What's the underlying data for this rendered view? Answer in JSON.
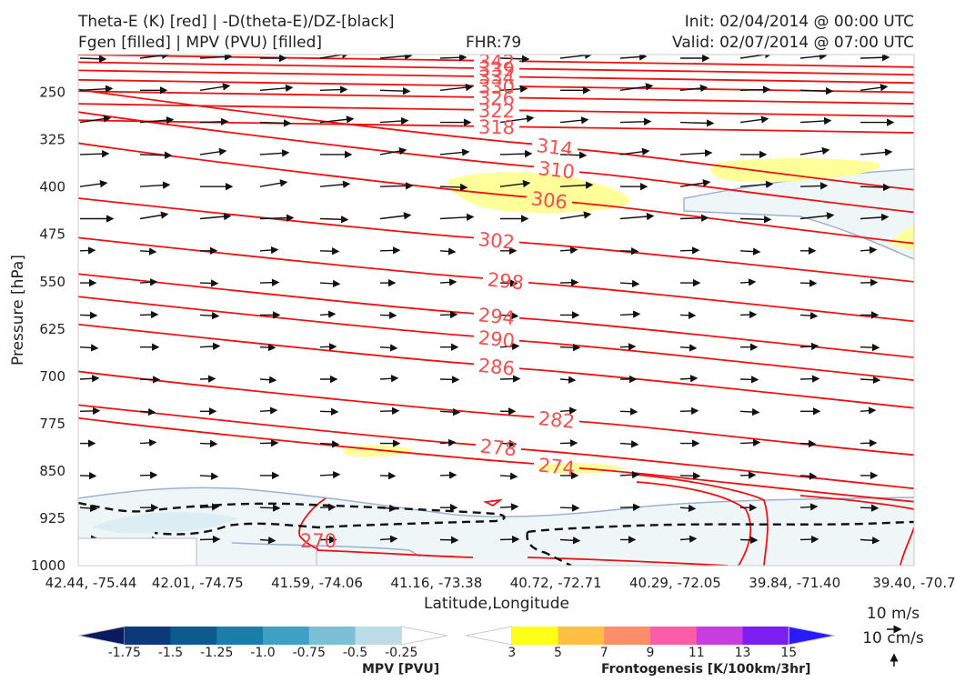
{
  "header": {
    "title_left_1": "Theta-E (K) [red] | -D(theta-E)/DZ-[black]",
    "title_left_2": "Fgen [filled] | MPV (PVU) [filled]",
    "fhr": "FHR:79",
    "init": "Init: 02/04/2014 @ 00:00 UTC",
    "valid": "Valid: 02/07/2014 @ 07:00 UTC"
  },
  "chart_data": {
    "type": "cross-section",
    "xlabel": "Latitude,Longitude",
    "ylabel": "Pressure [hPa]",
    "y_ticks": [
      250,
      325,
      400,
      475,
      550,
      625,
      700,
      775,
      850,
      925,
      1000
    ],
    "ylim": [
      190,
      1000
    ],
    "x_ticks": [
      "42.44, -75.44",
      "42.01, -74.75",
      "41.59, -74.06",
      "41.16, -73.38",
      "40.72, -72.71",
      "40.29, -72.05",
      "39.84, -71.40",
      "39.40, -70.7"
    ],
    "theta_e_contours": [
      {
        "label": "342",
        "at": 200
      },
      {
        "label": "339",
        "at": 212
      },
      {
        "label": "334",
        "at": 225
      },
      {
        "label": "330",
        "at": 240
      },
      {
        "label": "326",
        "at": 258
      },
      {
        "label": "322",
        "at": 278
      },
      {
        "label": "318",
        "at": 304
      },
      {
        "label": "314",
        "at": 336
      },
      {
        "label": "310",
        "at": 372
      },
      {
        "label": "306",
        "at": 420
      },
      {
        "label": "302",
        "at": 484
      },
      {
        "label": "298",
        "at": 548
      },
      {
        "label": "294",
        "at": 604
      },
      {
        "label": "290",
        "at": 640
      },
      {
        "label": "286",
        "at": 684
      },
      {
        "label": "282",
        "at": 768
      },
      {
        "label": "278",
        "at": 812
      },
      {
        "label": "274",
        "at": 842
      },
      {
        "label": "270",
        "at": 960
      }
    ],
    "mpv_colorbar": {
      "label": "MPV [PVU]",
      "ticks": [
        "-1.75",
        "-1.5",
        "-1.25",
        "-1.0",
        "-0.75",
        "-0.5",
        "-0.25"
      ],
      "colors": [
        "#0b1a5e",
        "#0c3a78",
        "#0d5a8c",
        "#1a7fa8",
        "#3ea0c2",
        "#7cbfd6",
        "#bcdde8",
        "#ffffff"
      ]
    },
    "fgen_colorbar": {
      "label": "Frontogenesis [K/100km/3hr]",
      "ticks": [
        "3",
        "5",
        "7",
        "9",
        "11",
        "13",
        "15"
      ],
      "colors": [
        "#ffffff",
        "#ffff1a",
        "#ffbf40",
        "#ff8c6a",
        "#ff5ca8",
        "#c83ce0",
        "#7a1ff0",
        "#2a1aff"
      ]
    },
    "reference_vectors": {
      "u": "10 m/s",
      "w": "10 cm/s"
    }
  }
}
